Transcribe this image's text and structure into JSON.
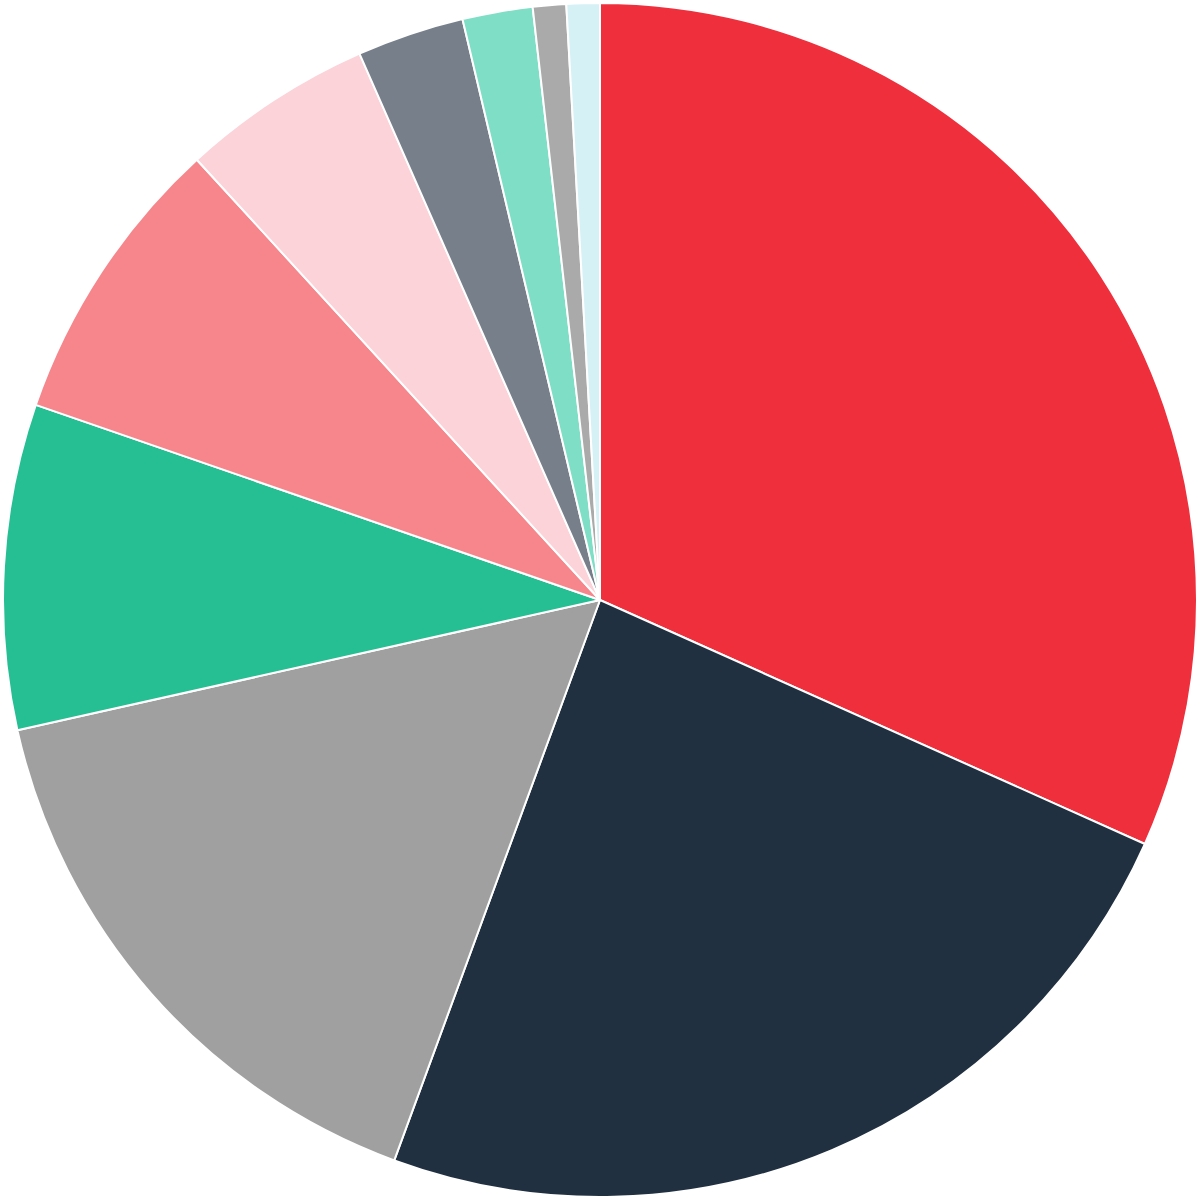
{
  "chart_data": {
    "type": "pie",
    "categories": [
      null,
      null,
      null,
      null,
      null,
      null,
      null,
      null,
      null,
      null
    ],
    "values": [
      31.7,
      23.9,
      15.9,
      8.8,
      7.9,
      5.2,
      2.9,
      1.9,
      0.9,
      0.9
    ],
    "colors": [
      "#ef2f3c",
      "#203040",
      "#a0a0a0",
      "#26bf94",
      "#f6868c",
      "#fbd3d8",
      "#767f8a",
      "#7fdec6",
      "#aaaaaa",
      "#d6f1f5"
    ],
    "legend": false
  }
}
